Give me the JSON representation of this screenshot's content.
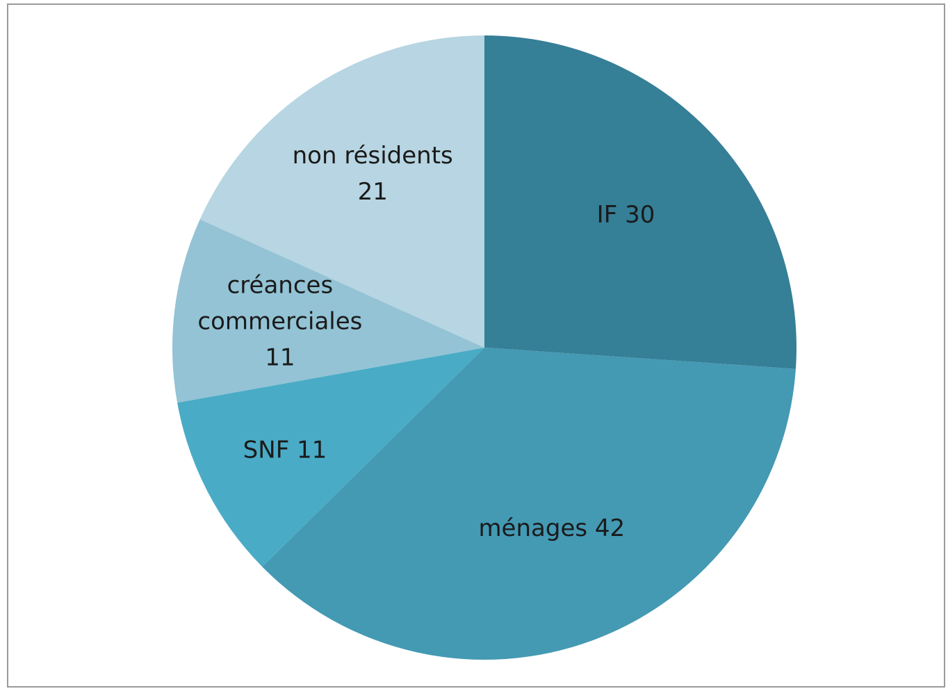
{
  "chart_data": {
    "type": "pie",
    "title": "",
    "slices": [
      {
        "name": "IF",
        "value": 30,
        "color": "#357f97",
        "label_lines": [
          "IF 30"
        ]
      },
      {
        "name": "ménages",
        "value": 42,
        "color": "#4499b3",
        "label_lines": [
          "ménages 42"
        ]
      },
      {
        "name": "SNF",
        "value": 11,
        "color": "#4aabc6",
        "label_lines": [
          "SNF 11"
        ]
      },
      {
        "name": "créances commerciales",
        "value": 11,
        "color": "#93c3d5",
        "label_lines": [
          "créances",
          "commerciales",
          "11"
        ]
      },
      {
        "name": "non résidents",
        "value": 21,
        "color": "#b7d5e2",
        "label_lines": [
          "non résidents",
          "21"
        ]
      }
    ],
    "start_angle_deg": 0,
    "direction": "clockwise",
    "legend": "none",
    "labels_inside": true
  }
}
